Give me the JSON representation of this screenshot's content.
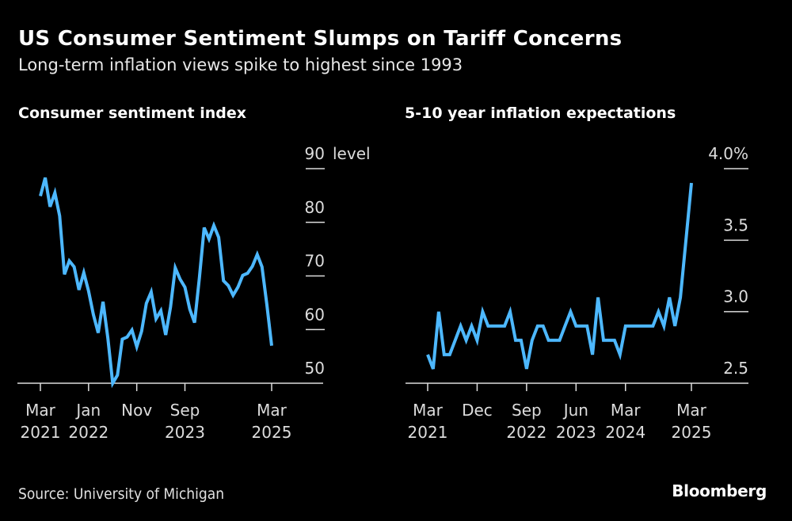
{
  "header": {
    "title": "US Consumer Sentiment Slumps on Tariff Concerns",
    "subtitle": "Long-term inflation views spike to highest since 1993"
  },
  "footer": {
    "source": "Source: University of Michigan",
    "brand": "Bloomberg"
  },
  "colors": {
    "background": "#000000",
    "line": "#4db8ff",
    "axis": "#dcdcdc",
    "text": "#ffffff"
  },
  "chart_data": [
    {
      "type": "line",
      "title": "Consumer sentiment index",
      "xlabel": "",
      "ylabel": "level",
      "ylim": [
        50,
        90
      ],
      "yticks": [
        90,
        80,
        70,
        60,
        50
      ],
      "ytick_labels": [
        "90",
        "80",
        "70",
        "60",
        "50"
      ],
      "yunit_label": "level",
      "grid": false,
      "legend": "none",
      "x_start": "2021-03",
      "x_end": "2025-03",
      "xticks": [
        {
          "month_index": 0,
          "line1": "Mar",
          "line2": "2021"
        },
        {
          "month_index": 10,
          "line1": "Jan",
          "line2": "2022"
        },
        {
          "month_index": 20,
          "line1": "Nov",
          "line2": ""
        },
        {
          "month_index": 30,
          "line1": "Sep",
          "line2": "2023"
        },
        {
          "month_index": 48,
          "line1": "Mar",
          "line2": "2025"
        }
      ],
      "series": [
        {
          "name": "Consumer sentiment index",
          "values": [
            84.9,
            88.3,
            82.9,
            85.5,
            81.2,
            70.3,
            72.8,
            71.7,
            67.4,
            70.6,
            67.2,
            62.8,
            59.4,
            65.2,
            58.4,
            50.0,
            51.5,
            58.2,
            58.6,
            59.9,
            56.8,
            59.7,
            64.9,
            67.0,
            62.0,
            63.5,
            59.0,
            64.2,
            71.5,
            69.4,
            67.9,
            63.8,
            61.3,
            69.7,
            79.0,
            76.9,
            79.4,
            77.2,
            69.1,
            68.2,
            66.4,
            67.9,
            70.1,
            70.5,
            71.8,
            74.0,
            71.7,
            64.7,
            57.0
          ]
        }
      ]
    },
    {
      "type": "line",
      "title": "5-10 year inflation expectations",
      "xlabel": "",
      "ylabel": "%",
      "ylim": [
        2.5,
        4.0
      ],
      "yticks": [
        4.0,
        3.5,
        3.0,
        2.5
      ],
      "ytick_labels": [
        "4.0%",
        "3.5",
        "3.0",
        "2.5"
      ],
      "grid": false,
      "legend": "none",
      "x_start": "2021-03",
      "x_end": "2025-03",
      "xticks": [
        {
          "month_index": 0,
          "line1": "Mar",
          "line2": "2021"
        },
        {
          "month_index": 9,
          "line1": "Dec",
          "line2": ""
        },
        {
          "month_index": 18,
          "line1": "Sep",
          "line2": "2022"
        },
        {
          "month_index": 27,
          "line1": "Jun",
          "line2": "2023"
        },
        {
          "month_index": 36,
          "line1": "Mar",
          "line2": "2024"
        },
        {
          "month_index": 48,
          "line1": "Mar",
          "line2": "2025"
        }
      ],
      "series": [
        {
          "name": "5-10 year inflation expectations",
          "values": [
            2.7,
            2.6,
            3.0,
            2.7,
            2.7,
            2.8,
            2.9,
            2.8,
            2.9,
            2.8,
            3.0,
            2.9,
            2.9,
            2.9,
            2.9,
            3.0,
            2.8,
            2.8,
            2.6,
            2.8,
            2.9,
            2.9,
            2.8,
            2.8,
            2.8,
            2.9,
            3.0,
            2.9,
            2.9,
            2.9,
            2.7,
            3.1,
            2.8,
            2.8,
            2.8,
            2.7,
            2.9,
            2.9,
            2.9,
            2.9,
            2.9,
            2.9,
            3.0,
            2.9,
            3.1,
            2.9,
            3.1,
            3.5,
            3.9
          ]
        }
      ]
    }
  ]
}
